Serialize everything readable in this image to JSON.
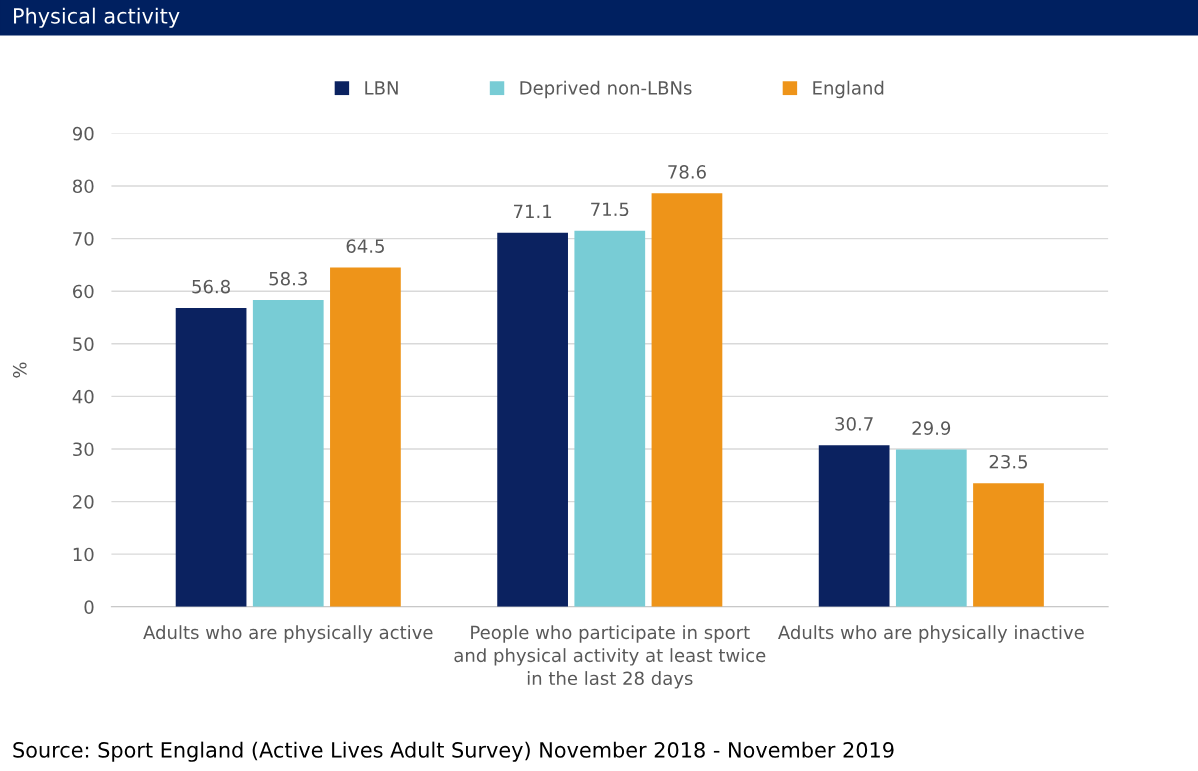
{
  "chart_data": {
    "type": "bar",
    "title": "Physical activity",
    "ylabel": "%",
    "categories": [
      "Adults who are physically active",
      "People who participate in sport and physical activity at least twice in the last 28 days",
      "Adults who are physically inactive"
    ],
    "series": [
      {
        "name": "LBN",
        "color": "#0b2260",
        "values": [
          56.8,
          71.1,
          30.7
        ]
      },
      {
        "name": "Deprived non-LBNs",
        "color": "#78ccd5",
        "values": [
          58.3,
          71.5,
          29.9
        ]
      },
      {
        "name": "England",
        "color": "#ee9419",
        "values": [
          64.5,
          78.6,
          23.5
        ]
      }
    ],
    "ylim": [
      0,
      90
    ],
    "yticks": [
      0,
      10,
      20,
      30,
      40,
      50,
      60,
      70,
      80,
      90
    ],
    "grid": "y",
    "legend": "top",
    "data_labels": true,
    "annotations": [
      "Source: Sport England (Active Lives Adult Survey) November 2018 - November 2019"
    ]
  }
}
